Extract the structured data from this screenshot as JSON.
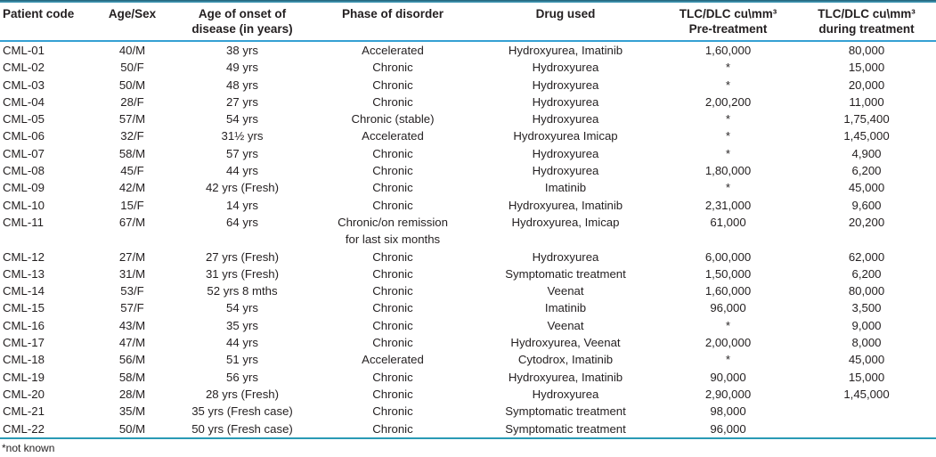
{
  "colors": {
    "top_border_dark": "#1f5d72",
    "top_border_light": "#4aa5c4",
    "header_rule": "#35a0d3",
    "bottom_rule": "#2a9ab5",
    "text": "#231f20",
    "background": "#ffffff"
  },
  "table": {
    "columns": [
      {
        "key": "code",
        "label": "Patient code",
        "align": "left"
      },
      {
        "key": "age_sex",
        "label": "Age/Sex",
        "align": "center"
      },
      {
        "key": "onset",
        "label": "Age of onset of\ndisease (in years)",
        "align": "center"
      },
      {
        "key": "phase",
        "label": "Phase of disorder",
        "align": "center"
      },
      {
        "key": "drug",
        "label": "Drug used",
        "align": "center"
      },
      {
        "key": "pre",
        "label": "TLC/DLC cu\\mm³\nPre-treatment",
        "align": "center"
      },
      {
        "key": "during",
        "label": "TLC/DLC cu\\mm³\nduring treatment",
        "align": "center"
      }
    ],
    "rows": [
      [
        "CML-01",
        "40/M",
        "38 yrs",
        "Accelerated",
        "Hydroxyurea, Imatinib",
        "1,60,000",
        "80,000"
      ],
      [
        "CML-02",
        "50/F",
        "49 yrs",
        "Chronic",
        "Hydroxyurea",
        "*",
        "15,000"
      ],
      [
        "CML-03",
        "50/M",
        "48 yrs",
        "Chronic",
        "Hydroxyurea",
        "*",
        "20,000"
      ],
      [
        "CML-04",
        "28/F",
        "27 yrs",
        "Chronic",
        "Hydroxyurea",
        "2,00,200",
        "11,000"
      ],
      [
        "CML-05",
        "57/M",
        "54 yrs",
        "Chronic (stable)",
        "Hydroxyurea",
        "*",
        "1,75,400"
      ],
      [
        "CML-06",
        "32/F",
        "31½ yrs",
        "Accelerated",
        "Hydroxyurea Imicap",
        "*",
        "1,45,000"
      ],
      [
        "CML-07",
        "58/M",
        "57 yrs",
        "Chronic",
        "Hydroxyurea",
        "*",
        "4,900"
      ],
      [
        "CML-08",
        "45/F",
        "44 yrs",
        "Chronic",
        "Hydroxyurea",
        "1,80,000",
        "6,200"
      ],
      [
        "CML-09",
        "42/M",
        "42 yrs (Fresh)",
        "Chronic",
        "Imatinib",
        "*",
        "45,000"
      ],
      [
        "CML-10",
        "15/F",
        "14 yrs",
        "Chronic",
        "Hydroxyurea, Imatinib",
        "2,31,000",
        "9,600"
      ],
      [
        "CML-11",
        "67/M",
        "64 yrs",
        "Chronic/on remission\nfor last six months",
        "Hydroxyurea, Imicap",
        "61,000",
        "20,200"
      ],
      [
        "CML-12",
        "27/M",
        "27 yrs (Fresh)",
        "Chronic",
        "Hydroxyurea",
        "6,00,000",
        "62,000"
      ],
      [
        "CML-13",
        "31/M",
        "31 yrs (Fresh)",
        "Chronic",
        "Symptomatic treatment",
        "1,50,000",
        "6,200"
      ],
      [
        "CML-14",
        "53/F",
        "52 yrs 8 mths",
        "Chronic",
        "Veenat",
        "1,60,000",
        "80,000"
      ],
      [
        "CML-15",
        "57/F",
        "54 yrs",
        "Chronic",
        "Imatinib",
        "96,000",
        "3,500"
      ],
      [
        "CML-16",
        "43/M",
        "35 yrs",
        "Chronic",
        "Veenat",
        "*",
        "9,000"
      ],
      [
        "CML-17",
        "47/M",
        "44 yrs",
        "Chronic",
        "Hydroxyurea, Veenat",
        "2,00,000",
        "8,000"
      ],
      [
        "CML-18",
        "56/M",
        "51 yrs",
        "Accelerated",
        "Cytodrox, Imatinib",
        "*",
        "45,000"
      ],
      [
        "CML-19",
        "58/M",
        "56 yrs",
        "Chronic",
        "Hydroxyurea, Imatinib",
        "90,000",
        "15,000"
      ],
      [
        "CML-20",
        "28/M",
        "28 yrs (Fresh)",
        "Chronic",
        "Hydroxyurea",
        "2,90,000",
        "1,45,000"
      ],
      [
        "CML-21",
        "35/M",
        "35 yrs (Fresh case)",
        "Chronic",
        "Symptomatic treatment",
        "98,000",
        ""
      ],
      [
        "CML-22",
        "50/M",
        "50 yrs (Fresh case)",
        "Chronic",
        "Symptomatic treatment",
        "96,000",
        ""
      ]
    ],
    "footnote": "*not known"
  }
}
